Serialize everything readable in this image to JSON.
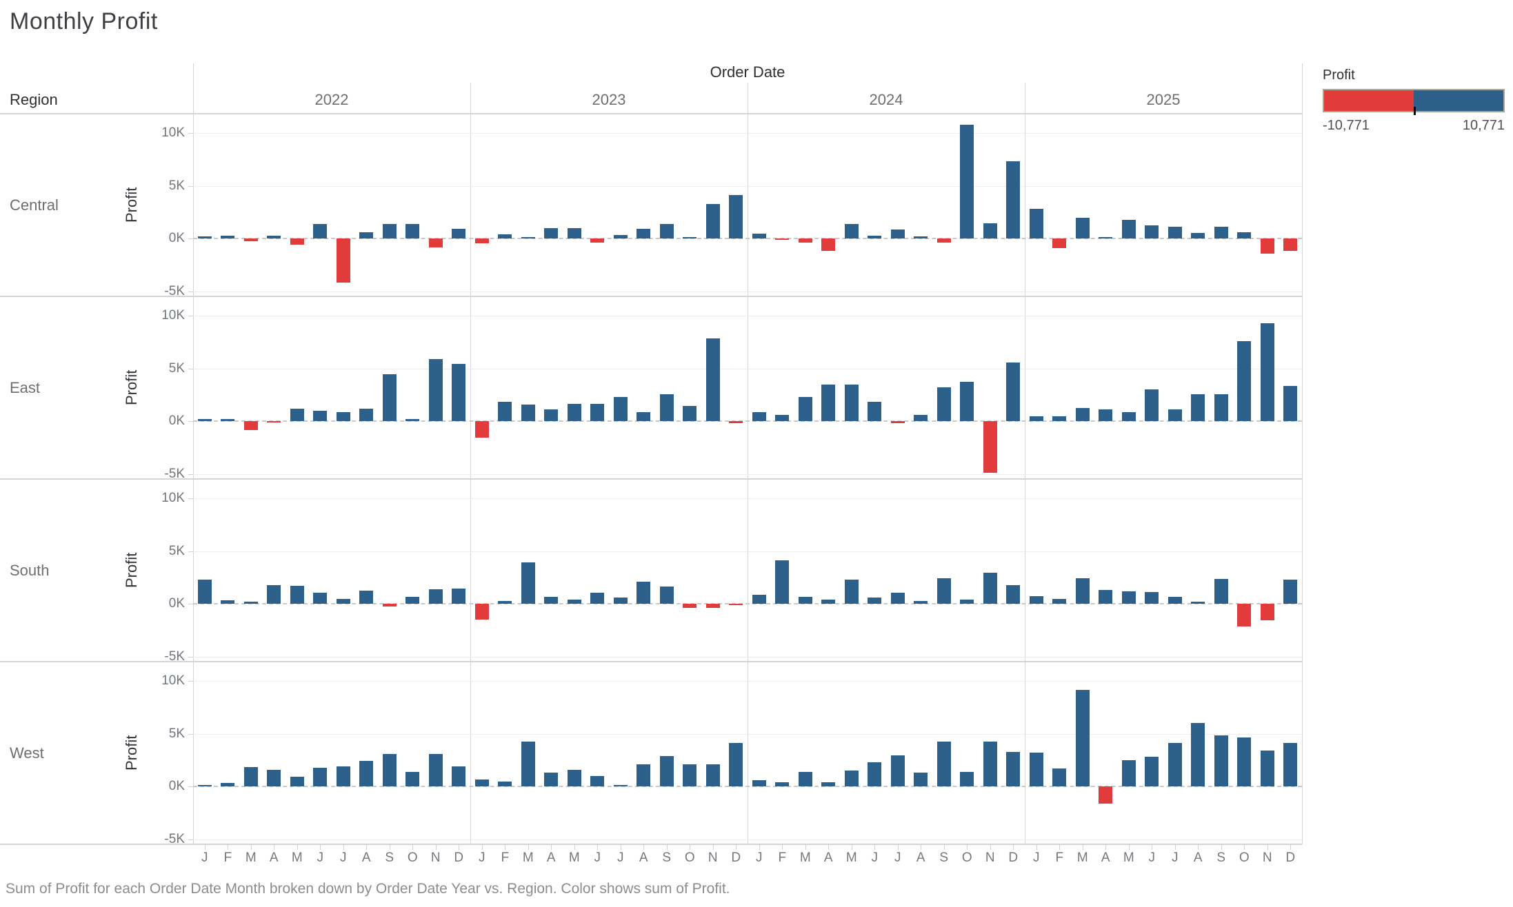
{
  "title": "Monthly Profit",
  "header": {
    "col_field": "Order Date",
    "row_field": "Region"
  },
  "legend": {
    "title": "Profit",
    "min_label": "-10,771",
    "max_label": "10,771"
  },
  "caption": "Sum of Profit for each Order Date Month broken down by Order Date Year vs. Region.  Color shows sum of Profit.",
  "colors": {
    "positive": "#2d5f8b",
    "negative": "#e23b3c",
    "grid": "#ececec",
    "border": "#d4d4d4",
    "zero_line": "#c9c9c9",
    "legend_border": "#aba596"
  },
  "chart_data": {
    "type": "bar",
    "title": "Monthly Profit",
    "x_field": "Order Date",
    "row_field": "Region",
    "ylabel": "Profit",
    "years": [
      "2022",
      "2023",
      "2024",
      "2025"
    ],
    "months": [
      "J",
      "F",
      "M",
      "A",
      "M",
      "J",
      "J",
      "A",
      "S",
      "O",
      "N",
      "D"
    ],
    "ytick_labels": [
      "10K",
      "5K",
      "0K",
      "-5K"
    ],
    "ytick_values": [
      10000,
      5000,
      0,
      -5000
    ],
    "ylim": [
      -5490,
      11830
    ],
    "grid": true,
    "legend_position": "top-right",
    "color_encoding": "sum of Profit (red negative, blue positive)",
    "series": [
      {
        "region": "Central",
        "values_by_year": {
          "2022": [
            180,
            290,
            -270,
            270,
            -560,
            1390,
            -4200,
            560,
            1390,
            1390,
            -850,
            900
          ],
          "2023": [
            -490,
            380,
            110,
            1010,
            1010,
            -400,
            340,
            900,
            1390,
            110,
            3250,
            4140
          ],
          "2024": [
            430,
            -110,
            -390,
            -1190,
            1350,
            260,
            870,
            170,
            -390,
            10771,
            1410,
            7300
          ],
          "2025": [
            2780,
            -910,
            1980,
            110,
            1760,
            1240,
            1090,
            540,
            1130,
            610,
            -1410,
            -1190
          ]
        }
      },
      {
        "region": "East",
        "values_by_year": {
          "2022": [
            170,
            170,
            -820,
            -130,
            1180,
            970,
            860,
            1180,
            4450,
            180,
            5850,
            5400
          ],
          "2023": [
            -1550,
            1830,
            1570,
            1140,
            1630,
            1630,
            2320,
            820,
            2540,
            1420,
            7850,
            -170
          ],
          "2024": [
            860,
            600,
            2260,
            3440,
            3440,
            1830,
            -220,
            600,
            3180,
            3700,
            -4900,
            5550
          ],
          "2025": [
            470,
            470,
            1250,
            1080,
            860,
            3010,
            1120,
            2540,
            2540,
            7570,
            9250,
            3330
          ]
        }
      },
      {
        "region": "South",
        "values_by_year": {
          "2022": [
            2320,
            320,
            170,
            1780,
            1680,
            1030,
            470,
            1250,
            -260,
            650,
            1400,
            1460
          ],
          "2023": [
            -1520,
            250,
            3900,
            680,
            420,
            1060,
            570,
            2110,
            1650,
            -380,
            -380,
            -130
          ],
          "2024": [
            860,
            4130,
            650,
            390,
            2320,
            600,
            1030,
            260,
            2410,
            390,
            2970,
            1760
          ],
          "2025": [
            750,
            470,
            2410,
            1330,
            1180,
            1120,
            650,
            220,
            2370,
            -2150,
            -1550,
            2260
          ]
        }
      },
      {
        "region": "West",
        "values_by_year": {
          "2022": [
            130,
            350,
            1810,
            1600,
            890,
            1750,
            1870,
            2450,
            3090,
            1380,
            3050,
            1870
          ],
          "2023": [
            640,
            470,
            4260,
            1280,
            1600,
            1000,
            100,
            2090,
            2880,
            2090,
            2090,
            4090
          ],
          "2024": [
            600,
            380,
            1380,
            380,
            1530,
            2300,
            2940,
            1320,
            4220,
            1380,
            4260,
            3300
          ],
          "2025": [
            3200,
            1700,
            9160,
            -1660,
            2510,
            2810,
            4150,
            6030,
            4860,
            4640,
            3370,
            4090
          ]
        }
      }
    ]
  }
}
